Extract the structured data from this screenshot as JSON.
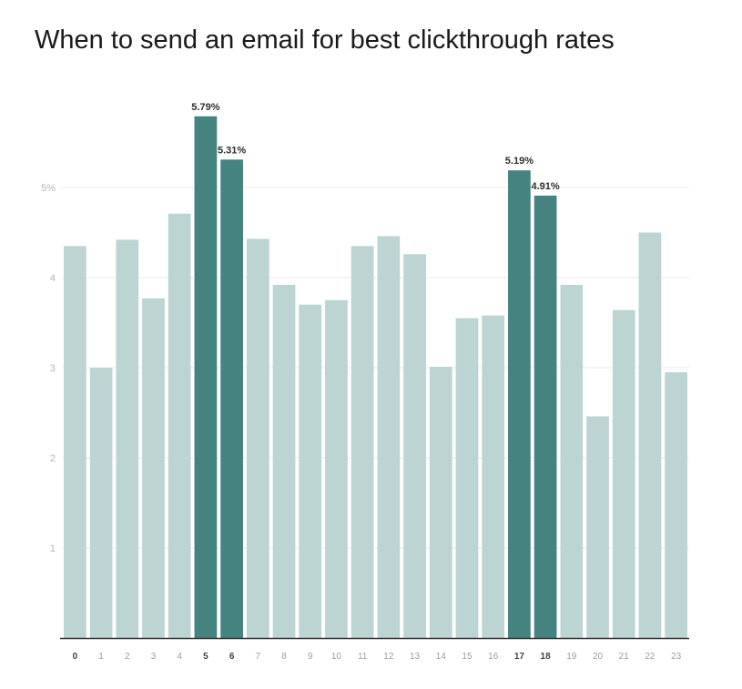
{
  "title": "When to send an email for best clickthrough rates",
  "chart_data": {
    "type": "bar",
    "title": "When to send an email for best clickthrough rates",
    "xlabel": "",
    "ylabel": "",
    "categories": [
      "0",
      "1",
      "2",
      "3",
      "4",
      "5",
      "6",
      "7",
      "8",
      "9",
      "10",
      "11",
      "12",
      "13",
      "14",
      "15",
      "16",
      "17",
      "18",
      "19",
      "20",
      "21",
      "22",
      "23"
    ],
    "values": [
      4.35,
      3.0,
      4.42,
      3.77,
      4.71,
      5.79,
      5.31,
      4.43,
      3.92,
      3.7,
      3.75,
      4.35,
      4.46,
      4.26,
      3.01,
      3.55,
      3.58,
      5.19,
      4.91,
      3.92,
      2.46,
      3.64,
      4.5,
      2.95
    ],
    "highlighted": [
      "5",
      "6",
      "17",
      "18"
    ],
    "data_labels": {
      "5": "5.79%",
      "6": "5.31%",
      "17": "5.19%",
      "18": "4.91%"
    },
    "y_ticks": [
      {
        "value": 1,
        "label": "1"
      },
      {
        "value": 2,
        "label": "2"
      },
      {
        "value": 3,
        "label": "3"
      },
      {
        "value": 4,
        "label": "4"
      },
      {
        "value": 5,
        "label": "5%"
      }
    ],
    "ylim": [
      0,
      5.8
    ],
    "grid": true,
    "legend": "none",
    "colors": {
      "bar": "#bcd4d2",
      "highlight": "#44837f",
      "grid": "#ebebeb",
      "axis": "#333333"
    }
  }
}
